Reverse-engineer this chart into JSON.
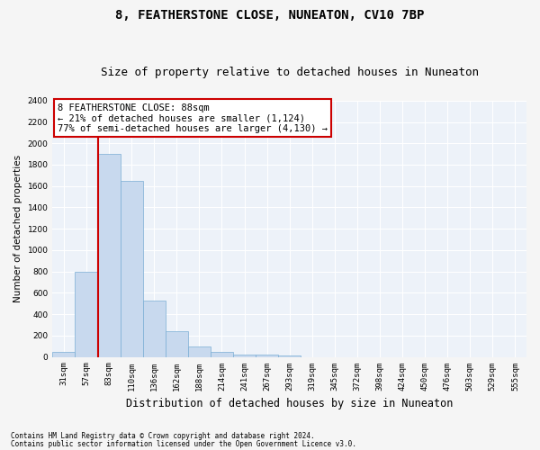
{
  "title": "8, FEATHERSTONE CLOSE, NUNEATON, CV10 7BP",
  "subtitle": "Size of property relative to detached houses in Nuneaton",
  "xlabel": "Distribution of detached houses by size in Nuneaton",
  "ylabel": "Number of detached properties",
  "categories": [
    "31sqm",
    "57sqm",
    "83sqm",
    "110sqm",
    "136sqm",
    "162sqm",
    "188sqm",
    "214sqm",
    "241sqm",
    "267sqm",
    "293sqm",
    "319sqm",
    "345sqm",
    "372sqm",
    "398sqm",
    "424sqm",
    "450sqm",
    "476sqm",
    "503sqm",
    "529sqm",
    "555sqm"
  ],
  "values": [
    50,
    800,
    1900,
    1650,
    530,
    240,
    100,
    45,
    25,
    20,
    15,
    0,
    0,
    0,
    0,
    0,
    0,
    0,
    0,
    0,
    0
  ],
  "bar_color": "#c8d9ee",
  "bar_edge_color": "#7aadd4",
  "vline_x_index": 2.0,
  "vline_color": "#cc0000",
  "annotation_text": "8 FEATHERSTONE CLOSE: 88sqm\n← 21% of detached houses are smaller (1,124)\n77% of semi-detached houses are larger (4,130) →",
  "annotation_box_color": "#ffffff",
  "annotation_box_edge": "#cc0000",
  "ylim": [
    0,
    2400
  ],
  "yticks": [
    0,
    200,
    400,
    600,
    800,
    1000,
    1200,
    1400,
    1600,
    1800,
    2000,
    2200,
    2400
  ],
  "footnote1": "Contains HM Land Registry data © Crown copyright and database right 2024.",
  "footnote2": "Contains public sector information licensed under the Open Government Licence v3.0.",
  "plot_bg_color": "#edf2f9",
  "fig_bg_color": "#f5f5f5",
  "grid_color": "#ffffff",
  "title_fontsize": 10,
  "subtitle_fontsize": 9,
  "tick_fontsize": 6.5,
  "ylabel_fontsize": 7.5,
  "xlabel_fontsize": 8.5,
  "annotation_fontsize": 7.5
}
